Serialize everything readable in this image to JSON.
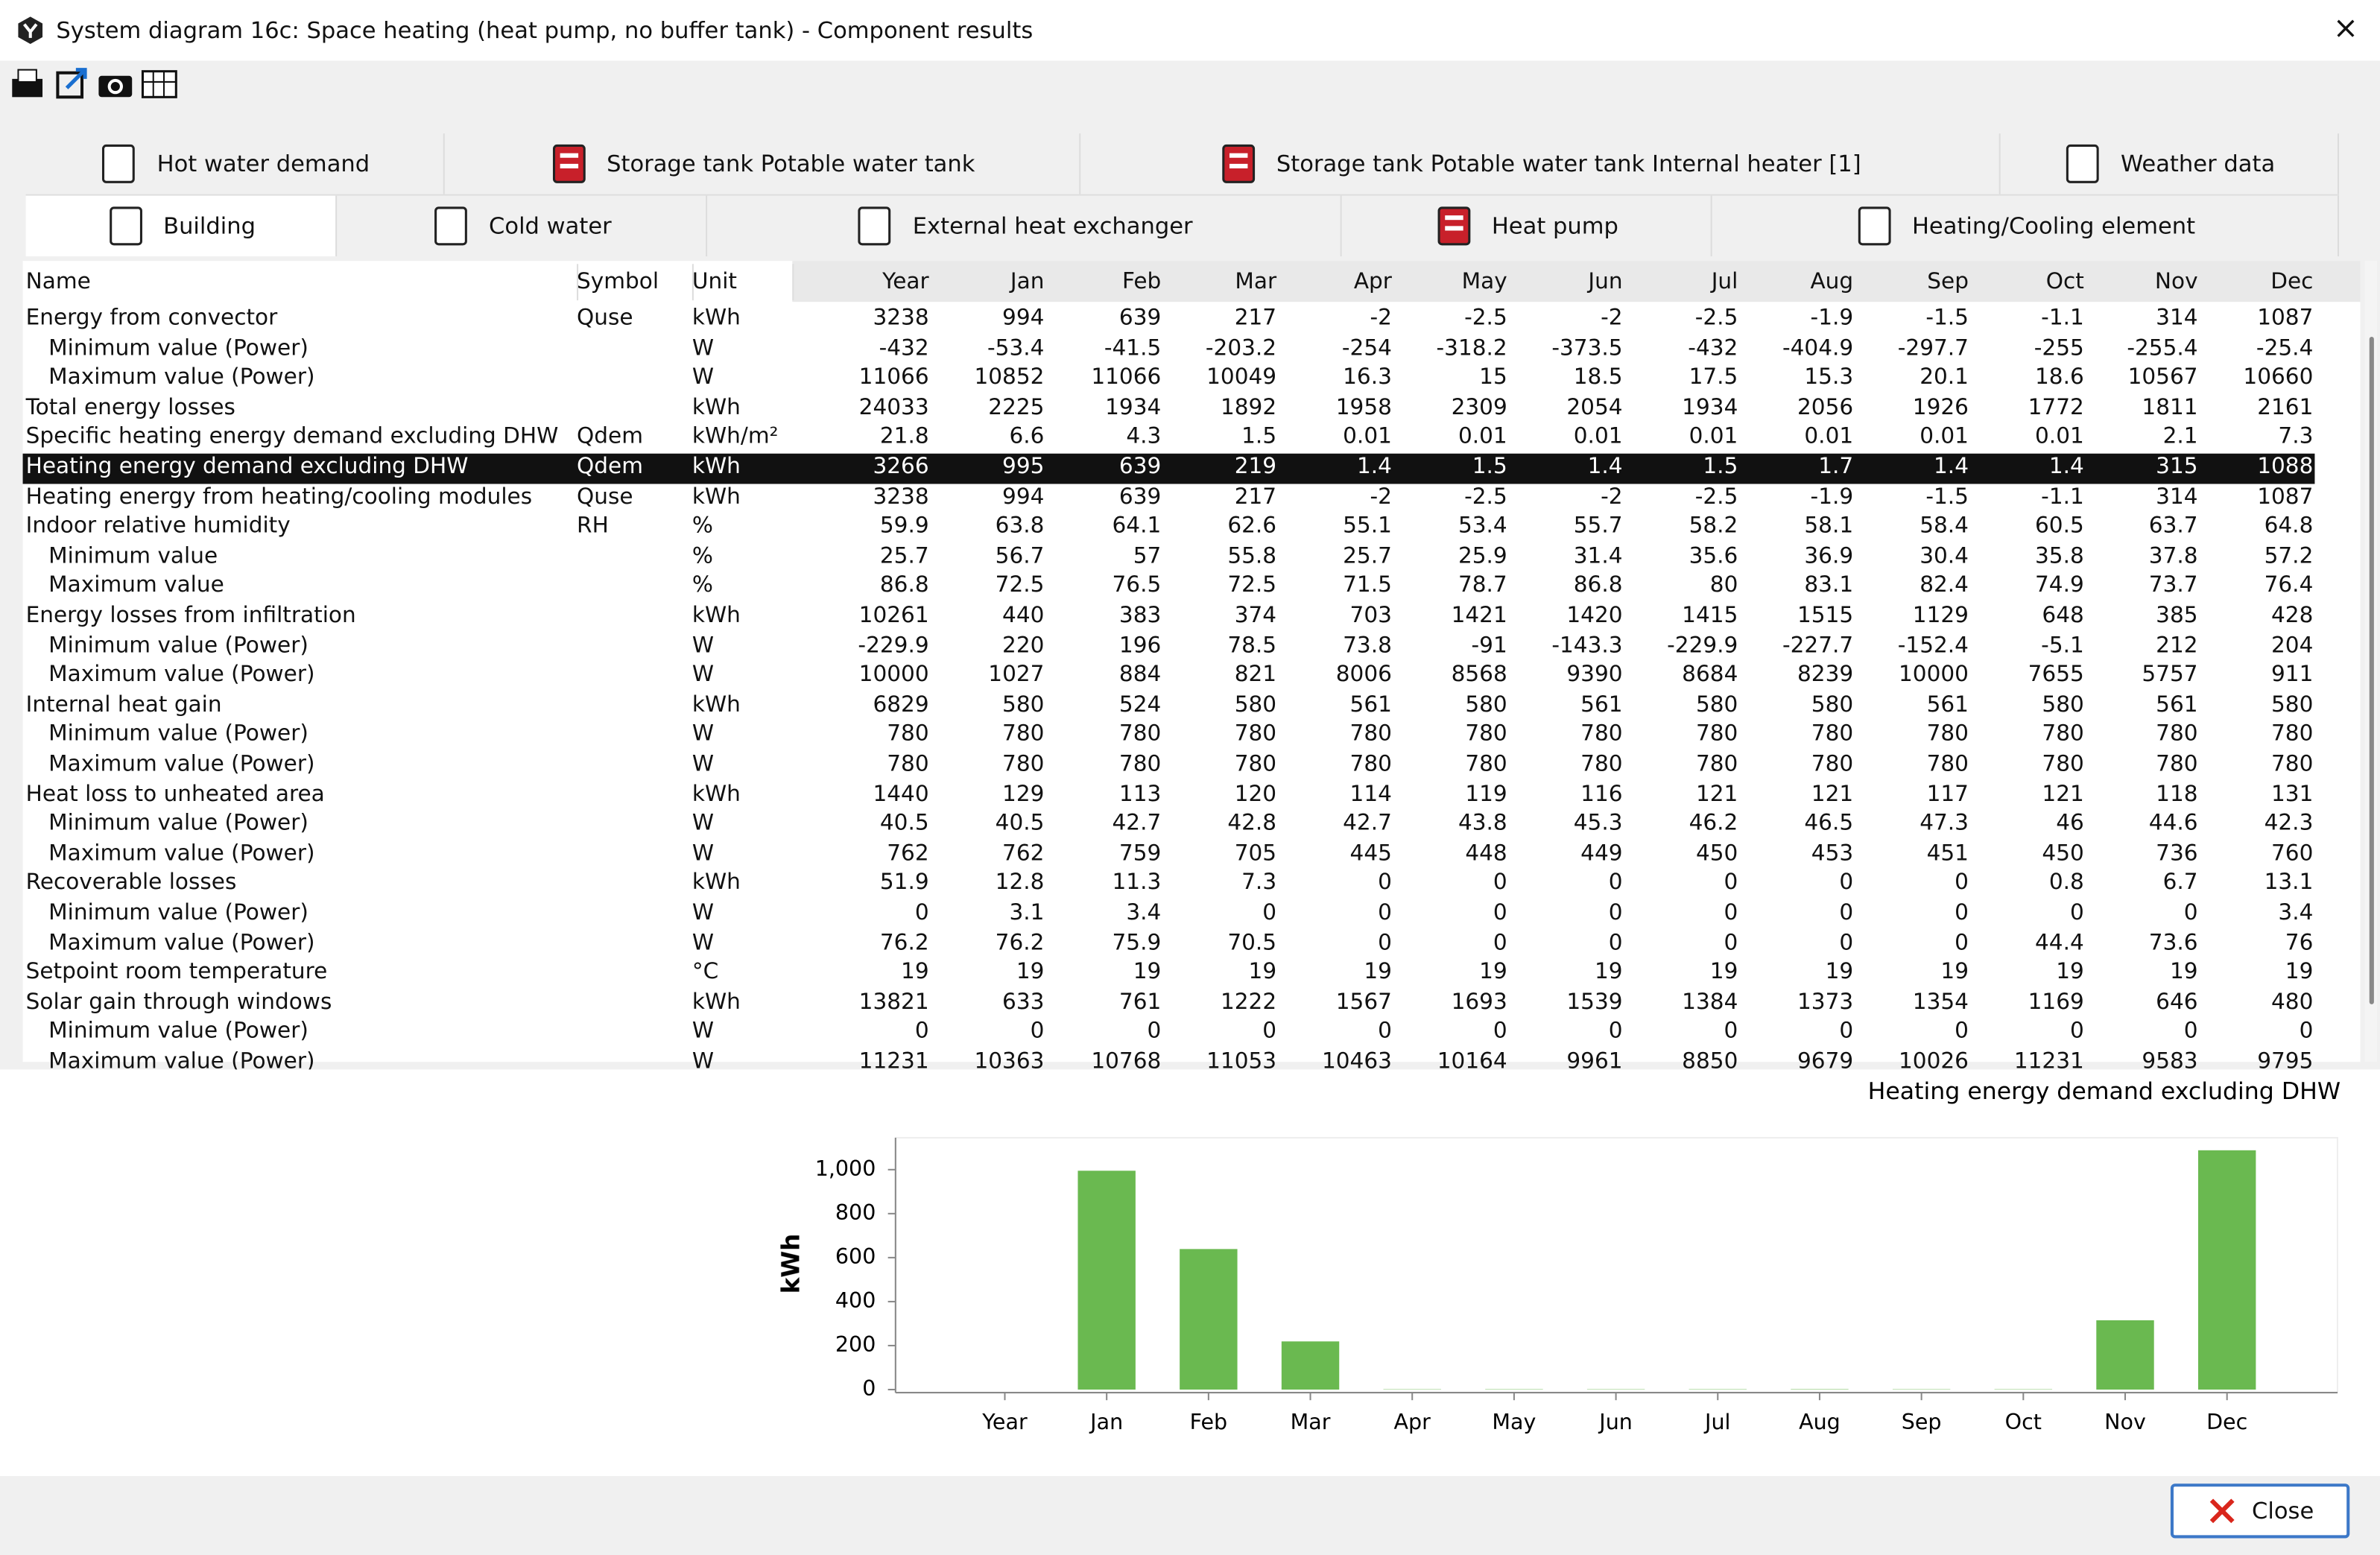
{
  "window": {
    "title": "System diagram 16c: Space heating (heat pump, no buffer tank) - Component results"
  },
  "tabs": {
    "row1": [
      {
        "label": "Hot water demand"
      },
      {
        "label": "Storage tank Potable water tank"
      },
      {
        "label": "Storage tank Potable water tank Internal heater [1]"
      },
      {
        "label": "Weather data"
      }
    ],
    "row2": [
      {
        "label": "Building",
        "active": true
      },
      {
        "label": "Cold water"
      },
      {
        "label": "External heat exchanger"
      },
      {
        "label": "Heat pump"
      },
      {
        "label": "Heating/Cooling element"
      }
    ]
  },
  "table": {
    "columns": [
      "Name",
      "Symbol",
      "Unit",
      "Year",
      "Jan",
      "Feb",
      "Mar",
      "Apr",
      "May",
      "Jun",
      "Jul",
      "Aug",
      "Sep",
      "Oct",
      "Nov",
      "Dec"
    ],
    "rows": [
      {
        "name": "Energy from convector",
        "symbol": "Quse",
        "unit": "kWh",
        "values": [
          3238,
          994,
          639,
          217,
          -2,
          -2.5,
          -2,
          -2.5,
          -1.9,
          -1.5,
          -1.1,
          314,
          1087
        ],
        "children": [
          {
            "name": "Minimum value (Power)",
            "unit": "W",
            "values": [
              -432,
              -53.4,
              -41.5,
              -203.2,
              -254,
              -318.2,
              -373.5,
              -432,
              -404.9,
              -297.7,
              -255,
              -255.4,
              -25.4
            ]
          },
          {
            "name": "Maximum value (Power)",
            "unit": "W",
            "values": [
              11066,
              10852,
              11066,
              10049,
              16.3,
              15,
              18.5,
              17.5,
              15.3,
              20.1,
              18.6,
              10567,
              10660
            ]
          }
        ]
      },
      {
        "name": "Total energy losses",
        "unit": "kWh",
        "values": [
          24033,
          2225,
          1934,
          1892,
          1958,
          2309,
          2054,
          1934,
          2056,
          1926,
          1772,
          1811,
          2161
        ]
      },
      {
        "name": "Specific heating energy demand excluding DHW",
        "symbol": "Qdem",
        "unit": "kWh/m²",
        "values": [
          21.8,
          6.6,
          4.3,
          1.5,
          0.01,
          0.01,
          0.01,
          0.01,
          0.01,
          0.01,
          0.01,
          2.1,
          7.3
        ]
      },
      {
        "name": "Heating energy demand excluding DHW",
        "symbol": "Qdem",
        "unit": "kWh",
        "selected": true,
        "values": [
          3266,
          995,
          639,
          219,
          1.4,
          1.5,
          1.4,
          1.5,
          1.7,
          1.4,
          1.4,
          315,
          1088
        ]
      },
      {
        "name": "Heating energy from heating/cooling modules",
        "symbol": "Quse",
        "unit": "kWh",
        "values": [
          3238,
          994,
          639,
          217,
          -2,
          -2.5,
          -2,
          -2.5,
          -1.9,
          -1.5,
          -1.1,
          314,
          1087
        ]
      },
      {
        "name": "Indoor relative humidity",
        "symbol": "RH",
        "unit": "%",
        "values": [
          59.9,
          63.8,
          64.1,
          62.6,
          55.1,
          53.4,
          55.7,
          58.2,
          58.1,
          58.4,
          60.5,
          63.7,
          64.8
        ],
        "children": [
          {
            "name": "Minimum value",
            "unit": "%",
            "values": [
              25.7,
              56.7,
              57,
              55.8,
              25.7,
              25.9,
              31.4,
              35.6,
              36.9,
              30.4,
              35.8,
              37.8,
              57.2
            ]
          },
          {
            "name": "Maximum value",
            "unit": "%",
            "values": [
              86.8,
              72.5,
              76.5,
              72.5,
              71.5,
              78.7,
              86.8,
              80,
              83.1,
              82.4,
              74.9,
              73.7,
              76.4
            ]
          }
        ]
      },
      {
        "name": "Energy losses from infiltration",
        "unit": "kWh",
        "values": [
          10261,
          440,
          383,
          374,
          703,
          1421,
          1420,
          1415,
          1515,
          1129,
          648,
          385,
          428
        ],
        "children": [
          {
            "name": "Minimum value (Power)",
            "unit": "W",
            "values": [
              -229.9,
              220,
              196,
              78.5,
              73.8,
              -91,
              -143.3,
              -229.9,
              -227.7,
              -152.4,
              -5.1,
              212,
              204
            ]
          },
          {
            "name": "Maximum value (Power)",
            "unit": "W",
            "values": [
              10000,
              1027,
              884,
              821,
              8006,
              8568,
              9390,
              8684,
              8239,
              10000,
              7655,
              5757,
              911
            ]
          }
        ]
      },
      {
        "name": "Internal heat gain",
        "unit": "kWh",
        "values": [
          6829,
          580,
          524,
          580,
          561,
          580,
          561,
          580,
          580,
          561,
          580,
          561,
          580
        ],
        "children": [
          {
            "name": "Minimum value (Power)",
            "unit": "W",
            "values": [
              780,
              780,
              780,
              780,
              780,
              780,
              780,
              780,
              780,
              780,
              780,
              780,
              780
            ]
          },
          {
            "name": "Maximum value (Power)",
            "unit": "W",
            "values": [
              780,
              780,
              780,
              780,
              780,
              780,
              780,
              780,
              780,
              780,
              780,
              780,
              780
            ]
          }
        ]
      },
      {
        "name": "Heat loss to unheated area",
        "unit": "kWh",
        "values": [
          1440,
          129,
          113,
          120,
          114,
          119,
          116,
          121,
          121,
          117,
          121,
          118,
          131
        ],
        "children": [
          {
            "name": "Minimum value (Power)",
            "unit": "W",
            "values": [
              40.5,
              40.5,
              42.7,
              42.8,
              42.7,
              43.8,
              45.3,
              46.2,
              46.5,
              47.3,
              46,
              44.6,
              42.3
            ]
          },
          {
            "name": "Maximum value (Power)",
            "unit": "W",
            "values": [
              762,
              762,
              759,
              705,
              445,
              448,
              449,
              450,
              453,
              451,
              450,
              736,
              760
            ]
          }
        ]
      },
      {
        "name": "Recoverable losses",
        "unit": "kWh",
        "values": [
          51.9,
          12.8,
          11.3,
          7.3,
          0,
          0,
          0,
          0,
          0,
          0,
          0.8,
          6.7,
          13.1
        ],
        "children": [
          {
            "name": "Minimum value (Power)",
            "unit": "W",
            "values": [
              0,
              3.1,
              3.4,
              0,
              0,
              0,
              0,
              0,
              0,
              0,
              0,
              0,
              3.4
            ]
          },
          {
            "name": "Maximum value (Power)",
            "unit": "W",
            "values": [
              76.2,
              76.2,
              75.9,
              70.5,
              0,
              0,
              0,
              0,
              0,
              0,
              44.4,
              73.6,
              76
            ]
          }
        ]
      },
      {
        "name": "Setpoint room temperature",
        "unit": "°C",
        "values": [
          19,
          19,
          19,
          19,
          19,
          19,
          19,
          19,
          19,
          19,
          19,
          19,
          19
        ]
      },
      {
        "name": "Solar gain through windows",
        "unit": "kWh",
        "values": [
          13821,
          633,
          761,
          1222,
          1567,
          1693,
          1539,
          1384,
          1373,
          1354,
          1169,
          646,
          480
        ],
        "children": [
          {
            "name": "Minimum value (Power)",
            "unit": "W",
            "values": [
              0,
              0,
              0,
              0,
              0,
              0,
              0,
              0,
              0,
              0,
              0,
              0,
              0
            ]
          },
          {
            "name": "Maximum value (Power)",
            "unit": "W",
            "values": [
              11231,
              10363,
              10768,
              11053,
              10463,
              10164,
              9961,
              8850,
              9679,
              10026,
              11231,
              9583,
              9795
            ]
          }
        ]
      }
    ]
  },
  "chart": {
    "type": "bar",
    "title": "Heating energy demand excluding DHW",
    "y_label": "kWh",
    "categories": [
      "Year",
      "Jan",
      "Feb",
      "Mar",
      "Apr",
      "May",
      "Jun",
      "Jul",
      "Aug",
      "Sep",
      "Oct",
      "Nov",
      "Dec"
    ],
    "values": [
      null,
      995,
      639,
      219,
      1.4,
      1.5,
      1.4,
      1.5,
      1.7,
      1.4,
      1.4,
      315,
      1088
    ],
    "color": "#6ab950",
    "ylim": [
      0,
      1145
    ],
    "yticks": [
      0,
      200,
      400,
      600,
      800,
      {
        "value": 1000,
        "label": "1,000"
      }
    ]
  },
  "buttons": {
    "close": "Close"
  }
}
